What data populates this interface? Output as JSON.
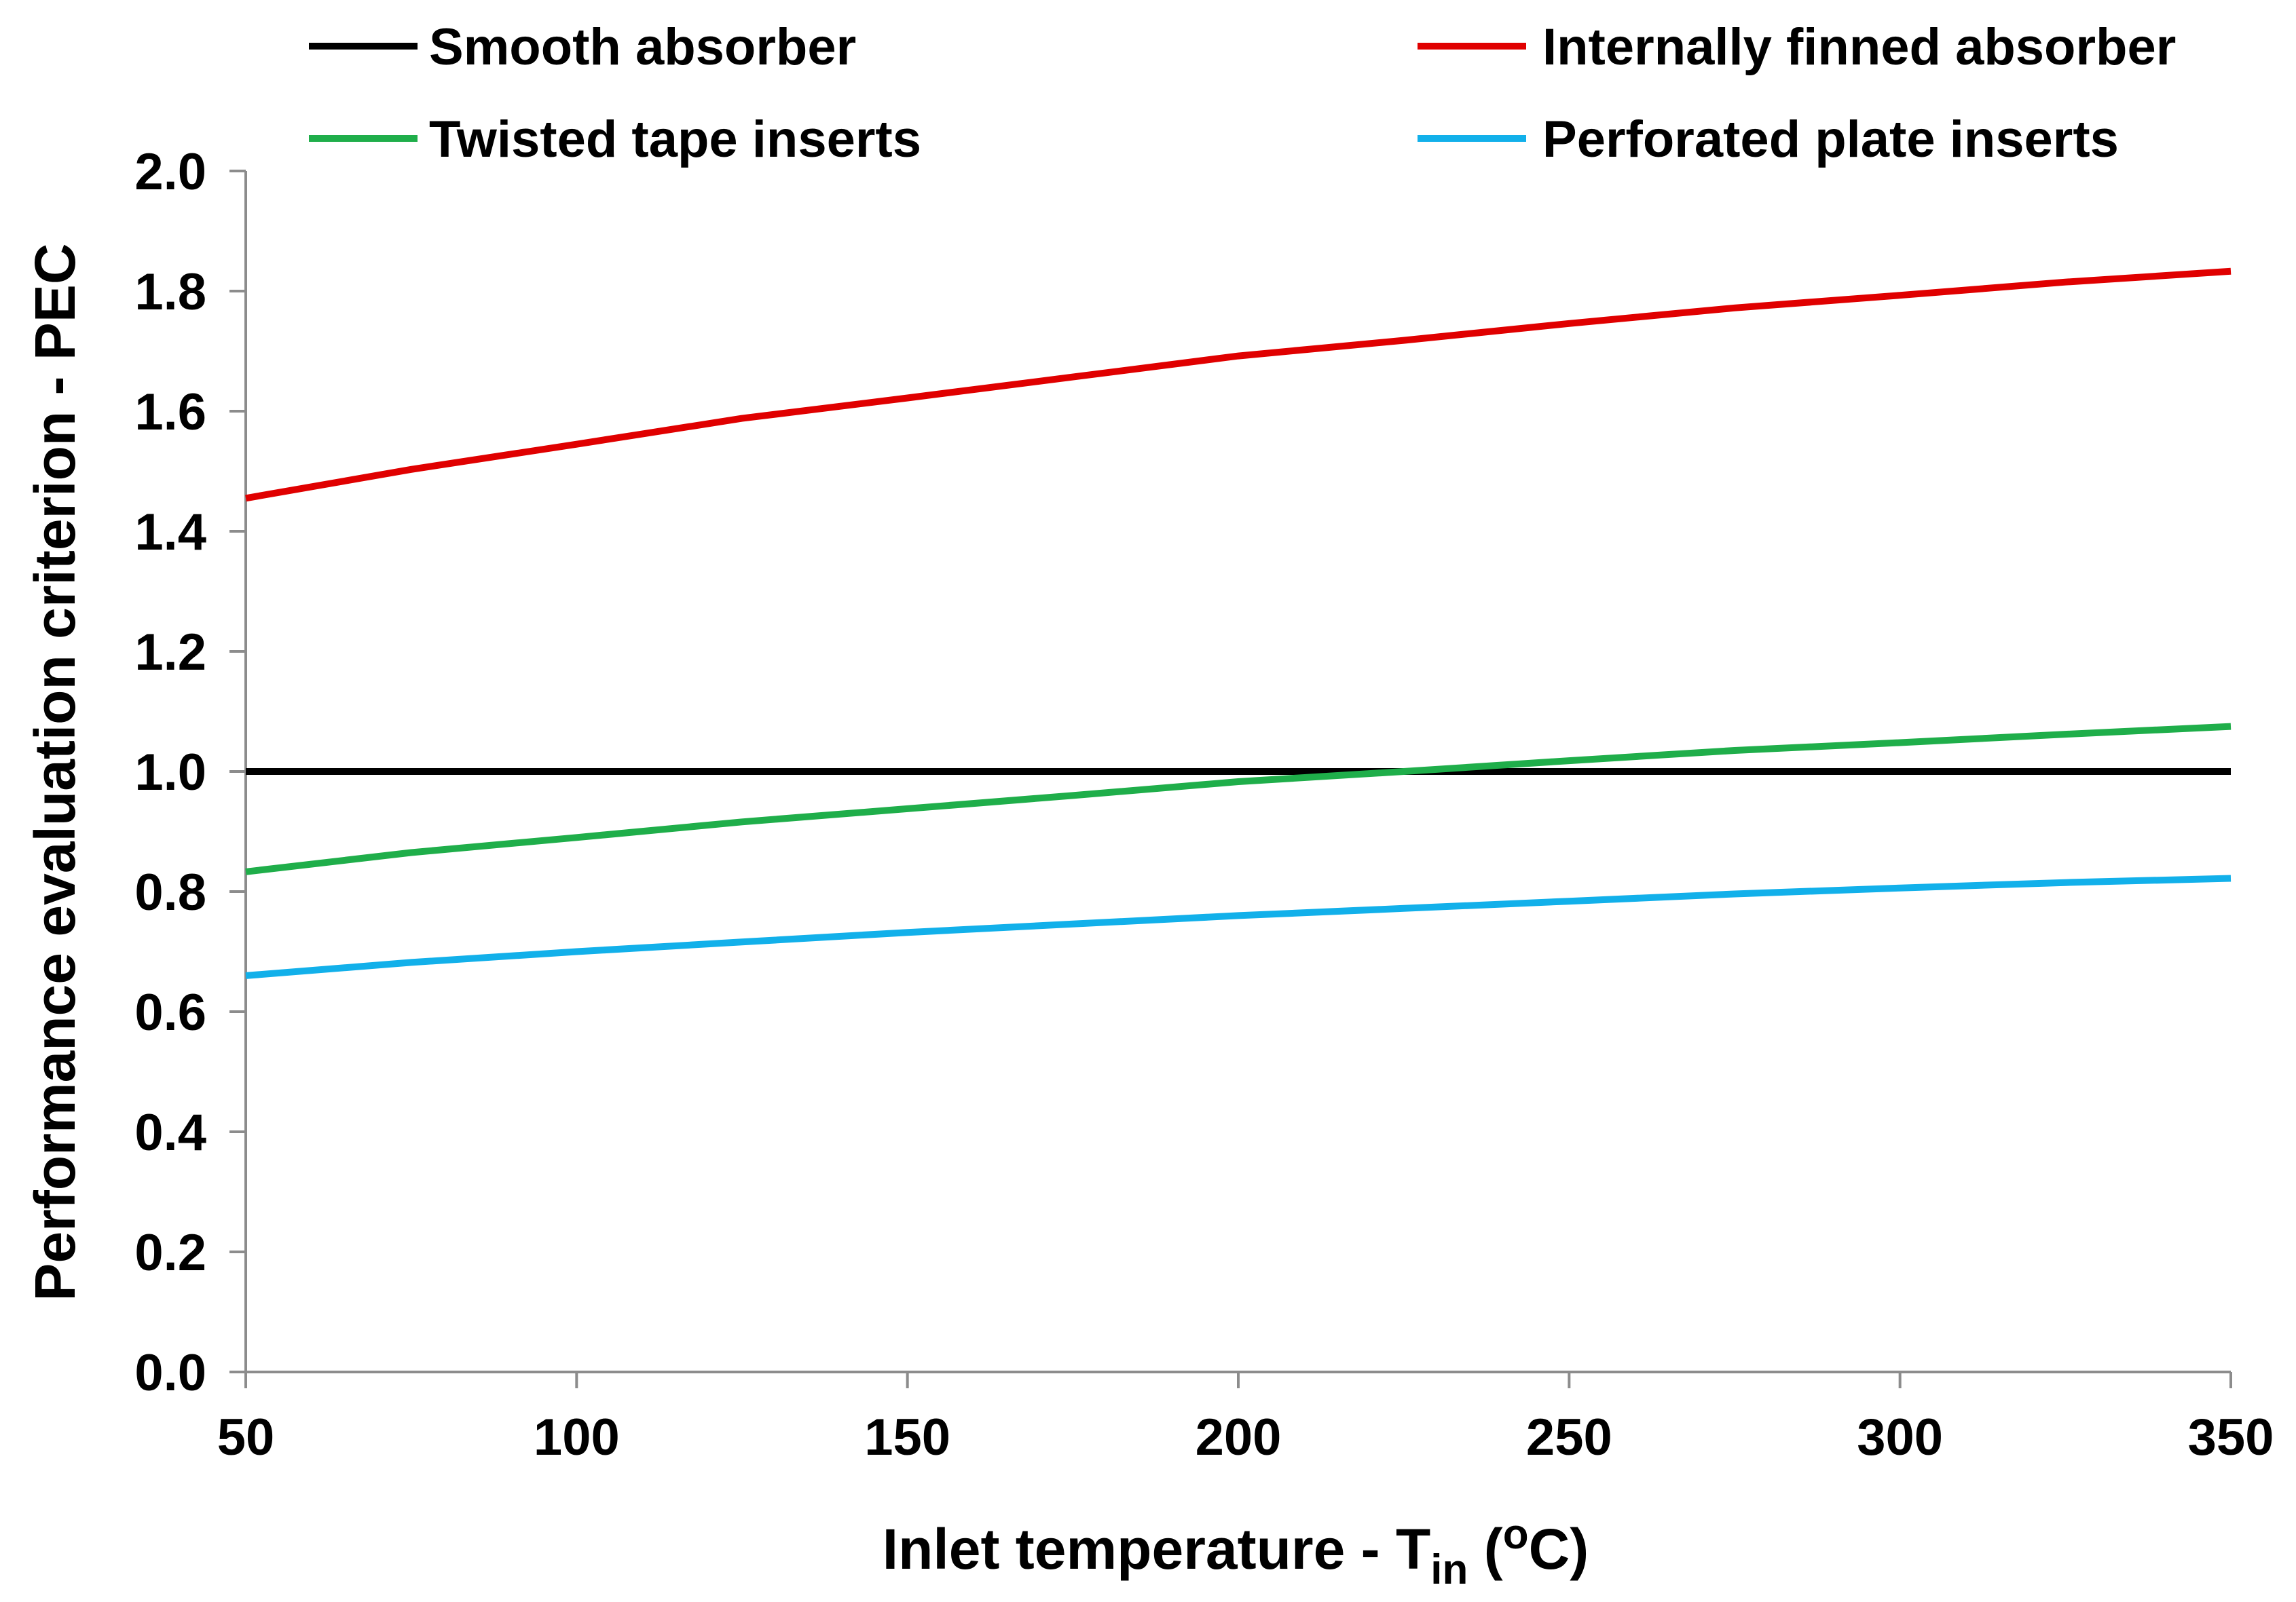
{
  "chart_data": {
    "type": "line",
    "title": "",
    "xlabel": {
      "text": "Inlet temperature - T",
      "subscript": "in",
      "open_paren": " (",
      "superscript": "o",
      "unit": "C)"
    },
    "ylabel": "Performance evaluation criterion - PEC",
    "xlim": [
      50,
      350
    ],
    "ylim": [
      0.0,
      2.0
    ],
    "xticks": [
      "50",
      "100",
      "150",
      "200",
      "250",
      "300",
      "350"
    ],
    "yticks": [
      "0.0",
      "0.2",
      "0.4",
      "0.6",
      "0.8",
      "1.0",
      "1.2",
      "1.4",
      "1.6",
      "1.8",
      "2.0"
    ],
    "grid": false,
    "legend_position": "top",
    "x": [
      50,
      75,
      100,
      125,
      150,
      175,
      200,
      225,
      250,
      275,
      300,
      325,
      350
    ],
    "series": [
      {
        "name": "Smooth absorber",
        "color": "#000000",
        "values": [
          1.0,
          1.0,
          1.0,
          1.0,
          1.0,
          1.0,
          1.0,
          1.0,
          1.0,
          1.0,
          1.0,
          1.0,
          1.0
        ]
      },
      {
        "name": "Internally finned absorber",
        "color": "#e00000",
        "values": [
          1.455,
          1.503,
          1.545,
          1.588,
          1.622,
          1.657,
          1.692,
          1.718,
          1.746,
          1.772,
          1.793,
          1.815,
          1.833
        ]
      },
      {
        "name": "Twisted tape inserts",
        "color": "#1fae4a",
        "values": [
          0.833,
          0.865,
          0.89,
          0.916,
          0.938,
          0.96,
          0.983,
          1.0,
          1.018,
          1.035,
          1.048,
          1.062,
          1.075
        ]
      },
      {
        "name": "Perforated plate inserts",
        "color": "#12b0ea",
        "values": [
          0.66,
          0.682,
          0.7,
          0.716,
          0.732,
          0.746,
          0.76,
          0.772,
          0.784,
          0.796,
          0.806,
          0.815,
          0.822
        ]
      }
    ]
  }
}
